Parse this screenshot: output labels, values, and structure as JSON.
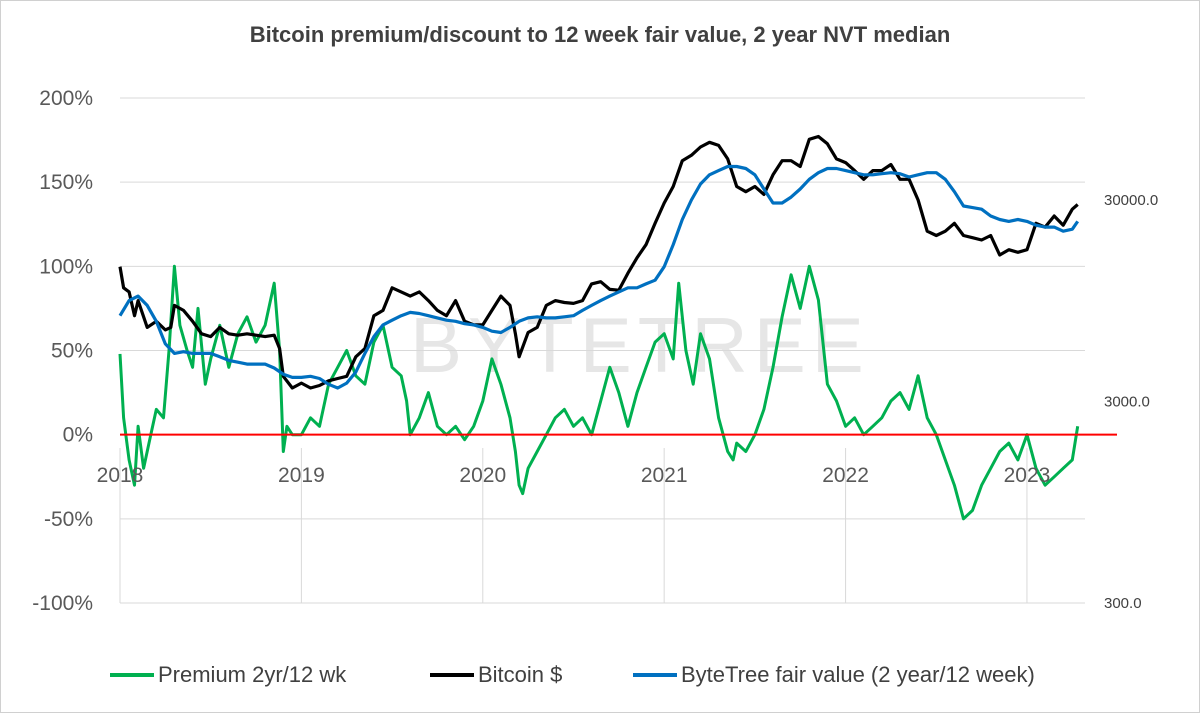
{
  "chart_data": {
    "type": "line",
    "title": "Bitcoin premium/discount to 12 week fair value, 2 year NVT median",
    "watermark": "BYTETREE",
    "left_axis": {
      "ylim": [
        -100,
        200
      ],
      "ticks": [
        -100,
        -50,
        0,
        50,
        100,
        150,
        200
      ],
      "tick_labels": [
        "-100%",
        "-50%",
        "0%",
        "50%",
        "100%",
        "150%",
        "200%"
      ]
    },
    "right_axis": {
      "scale": "log",
      "ylim": [
        300,
        100000
      ],
      "ticks": [
        300,
        3000,
        30000
      ],
      "tick_labels": [
        "300.0",
        "3000.0",
        "30000.0"
      ]
    },
    "x_axis": {
      "xlim": [
        2018.0,
        2023.3
      ],
      "ticks": [
        2018,
        2019,
        2020,
        2021,
        2022,
        2023
      ],
      "tick_labels": [
        "2018",
        "2019",
        "2020",
        "2021",
        "2022",
        "2023"
      ]
    },
    "series": [
      {
        "name": "Premium 2yr/12 wk",
        "axis": "left",
        "color": "#00b050",
        "x": [
          2018.0,
          2018.02,
          2018.05,
          2018.08,
          2018.1,
          2018.13,
          2018.17,
          2018.2,
          2018.24,
          2018.27,
          2018.3,
          2018.33,
          2018.37,
          2018.4,
          2018.43,
          2018.47,
          2018.5,
          2018.55,
          2018.6,
          2018.65,
          2018.7,
          2018.75,
          2018.8,
          2018.85,
          2018.88,
          2018.9,
          2018.92,
          2018.95,
          2019.0,
          2019.05,
          2019.1,
          2019.15,
          2019.2,
          2019.25,
          2019.3,
          2019.35,
          2019.4,
          2019.45,
          2019.5,
          2019.55,
          2019.58,
          2019.6,
          2019.65,
          2019.7,
          2019.75,
          2019.8,
          2019.85,
          2019.9,
          2019.95,
          2020.0,
          2020.05,
          2020.1,
          2020.15,
          2020.18,
          2020.2,
          2020.22,
          2020.25,
          2020.3,
          2020.35,
          2020.4,
          2020.45,
          2020.5,
          2020.55,
          2020.6,
          2020.65,
          2020.7,
          2020.75,
          2020.8,
          2020.85,
          2020.9,
          2020.95,
          2021.0,
          2021.05,
          2021.08,
          2021.12,
          2021.16,
          2021.2,
          2021.25,
          2021.3,
          2021.35,
          2021.38,
          2021.4,
          2021.45,
          2021.5,
          2021.55,
          2021.6,
          2021.65,
          2021.7,
          2021.75,
          2021.8,
          2021.85,
          2021.9,
          2021.95,
          2022.0,
          2022.05,
          2022.1,
          2022.15,
          2022.2,
          2022.25,
          2022.3,
          2022.35,
          2022.4,
          2022.45,
          2022.5,
          2022.55,
          2022.6,
          2022.65,
          2022.7,
          2022.75,
          2022.8,
          2022.85,
          2022.9,
          2022.95,
          2023.0,
          2023.05,
          2023.1,
          2023.15,
          2023.2,
          2023.25,
          2023.28
        ],
        "values": [
          48,
          10,
          -15,
          -30,
          5,
          -20,
          0,
          15,
          10,
          50,
          100,
          65,
          50,
          40,
          75,
          30,
          45,
          65,
          40,
          60,
          70,
          55,
          65,
          90,
          50,
          -10,
          5,
          0,
          0,
          10,
          5,
          30,
          40,
          50,
          35,
          30,
          55,
          65,
          40,
          35,
          20,
          0,
          10,
          25,
          5,
          0,
          5,
          -3,
          5,
          20,
          45,
          30,
          10,
          -10,
          -30,
          -35,
          -20,
          -10,
          0,
          10,
          15,
          5,
          10,
          0,
          20,
          40,
          25,
          5,
          25,
          40,
          55,
          60,
          45,
          90,
          50,
          30,
          60,
          45,
          10,
          -10,
          -15,
          -5,
          -10,
          0,
          15,
          40,
          70,
          95,
          75,
          100,
          80,
          30,
          20,
          5,
          10,
          0,
          5,
          10,
          20,
          25,
          15,
          35,
          10,
          0,
          -15,
          -30,
          -50,
          -45,
          -30,
          -20,
          -10,
          -5,
          -15,
          0,
          -20,
          -30,
          -25,
          -20,
          -15,
          5
        ]
      },
      {
        "name": "Bitcoin $",
        "axis": "right",
        "color": "#000000",
        "x": [
          2018.0,
          2018.02,
          2018.05,
          2018.08,
          2018.1,
          2018.15,
          2018.2,
          2018.25,
          2018.28,
          2018.3,
          2018.35,
          2018.4,
          2018.45,
          2018.5,
          2018.55,
          2018.6,
          2018.65,
          2018.7,
          2018.75,
          2018.8,
          2018.85,
          2018.88,
          2018.9,
          2018.95,
          2019.0,
          2019.05,
          2019.1,
          2019.15,
          2019.2,
          2019.25,
          2019.3,
          2019.35,
          2019.4,
          2019.45,
          2019.5,
          2019.55,
          2019.6,
          2019.65,
          2019.7,
          2019.75,
          2019.8,
          2019.85,
          2019.9,
          2019.95,
          2020.0,
          2020.05,
          2020.1,
          2020.15,
          2020.18,
          2020.2,
          2020.25,
          2020.3,
          2020.35,
          2020.4,
          2020.45,
          2020.5,
          2020.55,
          2020.6,
          2020.65,
          2020.7,
          2020.75,
          2020.8,
          2020.85,
          2020.9,
          2020.95,
          2021.0,
          2021.05,
          2021.1,
          2021.15,
          2021.2,
          2021.25,
          2021.3,
          2021.35,
          2021.4,
          2021.45,
          2021.5,
          2021.55,
          2021.6,
          2021.65,
          2021.7,
          2021.75,
          2021.8,
          2021.85,
          2021.9,
          2021.95,
          2022.0,
          2022.05,
          2022.1,
          2022.15,
          2022.2,
          2022.25,
          2022.3,
          2022.35,
          2022.4,
          2022.45,
          2022.5,
          2022.55,
          2022.6,
          2022.65,
          2022.7,
          2022.75,
          2022.8,
          2022.85,
          2022.9,
          2022.95,
          2023.0,
          2023.05,
          2023.1,
          2023.15,
          2023.2,
          2023.25,
          2023.28
        ],
        "values": [
          14000,
          11000,
          10500,
          8000,
          9500,
          7000,
          7500,
          6800,
          7000,
          9000,
          8500,
          7500,
          6500,
          6300,
          7000,
          6500,
          6400,
          6500,
          6400,
          6300,
          6400,
          5500,
          4000,
          3500,
          3700,
          3500,
          3600,
          3800,
          3900,
          4000,
          5000,
          5500,
          8000,
          8500,
          11000,
          10500,
          10000,
          10500,
          9500,
          8500,
          8000,
          9500,
          7500,
          7200,
          7200,
          8500,
          10000,
          9000,
          6500,
          5000,
          6600,
          7000,
          9000,
          9500,
          9300,
          9200,
          9500,
          11500,
          11800,
          10800,
          10700,
          13000,
          15500,
          18000,
          23000,
          29000,
          35000,
          47000,
          50000,
          55000,
          58000,
          56000,
          48000,
          35000,
          33000,
          35000,
          32000,
          40000,
          47000,
          47000,
          44000,
          60000,
          62000,
          57000,
          48000,
          46000,
          42000,
          38000,
          42000,
          42000,
          45000,
          38000,
          38000,
          30000,
          21000,
          20000,
          21000,
          23000,
          20000,
          19500,
          19000,
          20000,
          16000,
          17000,
          16500,
          17000,
          23000,
          22000,
          25000,
          22500,
          27000,
          28500
        ]
      },
      {
        "name": "ByteTree fair value (2 year/12 week)",
        "axis": "right",
        "color": "#0070c0",
        "x": [
          2018.0,
          2018.05,
          2018.1,
          2018.15,
          2018.2,
          2018.25,
          2018.3,
          2018.35,
          2018.4,
          2018.45,
          2018.5,
          2018.55,
          2018.6,
          2018.65,
          2018.7,
          2018.75,
          2018.8,
          2018.85,
          2018.9,
          2018.95,
          2019.0,
          2019.05,
          2019.1,
          2019.15,
          2019.2,
          2019.25,
          2019.3,
          2019.35,
          2019.4,
          2019.45,
          2019.5,
          2019.55,
          2019.6,
          2019.65,
          2019.7,
          2019.75,
          2019.8,
          2019.85,
          2019.9,
          2019.95,
          2020.0,
          2020.05,
          2020.1,
          2020.15,
          2020.2,
          2020.25,
          2020.3,
          2020.35,
          2020.4,
          2020.45,
          2020.5,
          2020.55,
          2020.6,
          2020.65,
          2020.7,
          2020.75,
          2020.8,
          2020.85,
          2020.9,
          2020.95,
          2021.0,
          2021.05,
          2021.1,
          2021.15,
          2021.2,
          2021.25,
          2021.3,
          2021.35,
          2021.4,
          2021.45,
          2021.5,
          2021.55,
          2021.6,
          2021.65,
          2021.7,
          2021.75,
          2021.8,
          2021.85,
          2021.9,
          2021.95,
          2022.0,
          2022.05,
          2022.1,
          2022.15,
          2022.2,
          2022.25,
          2022.3,
          2022.35,
          2022.4,
          2022.45,
          2022.5,
          2022.55,
          2022.6,
          2022.65,
          2022.7,
          2022.75,
          2022.8,
          2022.85,
          2022.9,
          2022.95,
          2023.0,
          2023.05,
          2023.1,
          2023.15,
          2023.2,
          2023.25,
          2023.28
        ],
        "values": [
          8000,
          9500,
          10000,
          9000,
          7500,
          5800,
          5200,
          5300,
          5200,
          5200,
          5200,
          5000,
          4800,
          4700,
          4600,
          4600,
          4600,
          4400,
          4100,
          3950,
          3950,
          4000,
          3900,
          3650,
          3500,
          3700,
          4200,
          5200,
          6300,
          7200,
          7600,
          8000,
          8300,
          8200,
          8000,
          7800,
          7600,
          7500,
          7300,
          7200,
          7000,
          6700,
          6600,
          7000,
          7500,
          7800,
          7900,
          7800,
          7800,
          7900,
          8000,
          8500,
          9000,
          9500,
          10000,
          10500,
          11000,
          11000,
          11500,
          12000,
          14000,
          18000,
          24000,
          30000,
          36000,
          40000,
          42000,
          44000,
          44000,
          43000,
          40000,
          34000,
          29000,
          29000,
          31000,
          34000,
          38000,
          41000,
          43000,
          43000,
          42000,
          41000,
          40000,
          40000,
          40500,
          41000,
          40500,
          39000,
          40000,
          41000,
          41000,
          38000,
          33000,
          28000,
          27500,
          27000,
          25000,
          24000,
          23500,
          24000,
          23500,
          22500,
          22000,
          22000,
          21000,
          21500,
          23500
        ]
      }
    ],
    "reference_line": {
      "name": "zero",
      "axis": "left",
      "value": 0,
      "color": "#ff0000"
    },
    "legend_position": "bottom"
  }
}
